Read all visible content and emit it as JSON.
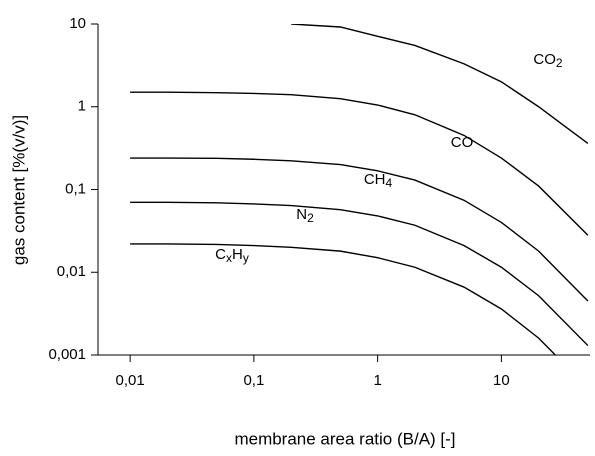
{
  "chart_data": {
    "type": "line",
    "xlabel": "membrane area ratio (B/A) [-]",
    "ylabel": "gas content [%(v/v)]",
    "x": [
      0.01,
      0.02,
      0.05,
      0.1,
      0.2,
      0.5,
      1,
      2,
      5,
      10,
      20,
      50
    ],
    "series": [
      {
        "name": "CO2",
        "color": "#000000",
        "values": [
          null,
          null,
          null,
          null,
          10,
          9.2,
          7.1,
          5.5,
          3.3,
          2,
          1,
          0.36
        ]
      },
      {
        "name": "CO",
        "color": "#000000",
        "values": [
          1.5,
          1.5,
          1.48,
          1.45,
          1.4,
          1.25,
          1.05,
          0.8,
          0.45,
          0.24,
          0.11,
          0.028
        ]
      },
      {
        "name": "CH4",
        "color": "#000000",
        "values": [
          0.24,
          0.24,
          0.238,
          0.232,
          0.222,
          0.2,
          0.168,
          0.13,
          0.074,
          0.04,
          0.018,
          0.0045
        ]
      },
      {
        "name": "N2",
        "color": "#000000",
        "values": [
          0.07,
          0.07,
          0.069,
          0.067,
          0.064,
          0.057,
          0.048,
          0.037,
          0.021,
          0.0115,
          0.0052,
          0.0013
        ]
      },
      {
        "name": "CxHy",
        "color": "#000000",
        "values": [
          0.022,
          0.022,
          0.0217,
          0.021,
          0.02,
          0.018,
          0.015,
          0.0115,
          0.0066,
          0.0036,
          0.0016,
          0.0004
        ]
      }
    ],
    "xscale": "log",
    "yscale": "log",
    "xlim": [
      0.0055,
      52
    ],
    "ylim": [
      0.001,
      10
    ],
    "xticks": [
      {
        "value": 0.01,
        "label": "0,01"
      },
      {
        "value": 0.1,
        "label": "0,1"
      },
      1,
      10
    ],
    "yticks": [
      {
        "value": 0.001,
        "label": "0,001"
      },
      {
        "value": 0.01,
        "label": "0,01"
      },
      {
        "value": 0.1,
        "label": "0,1"
      },
      1,
      10
    ],
    "grid": false
  }
}
